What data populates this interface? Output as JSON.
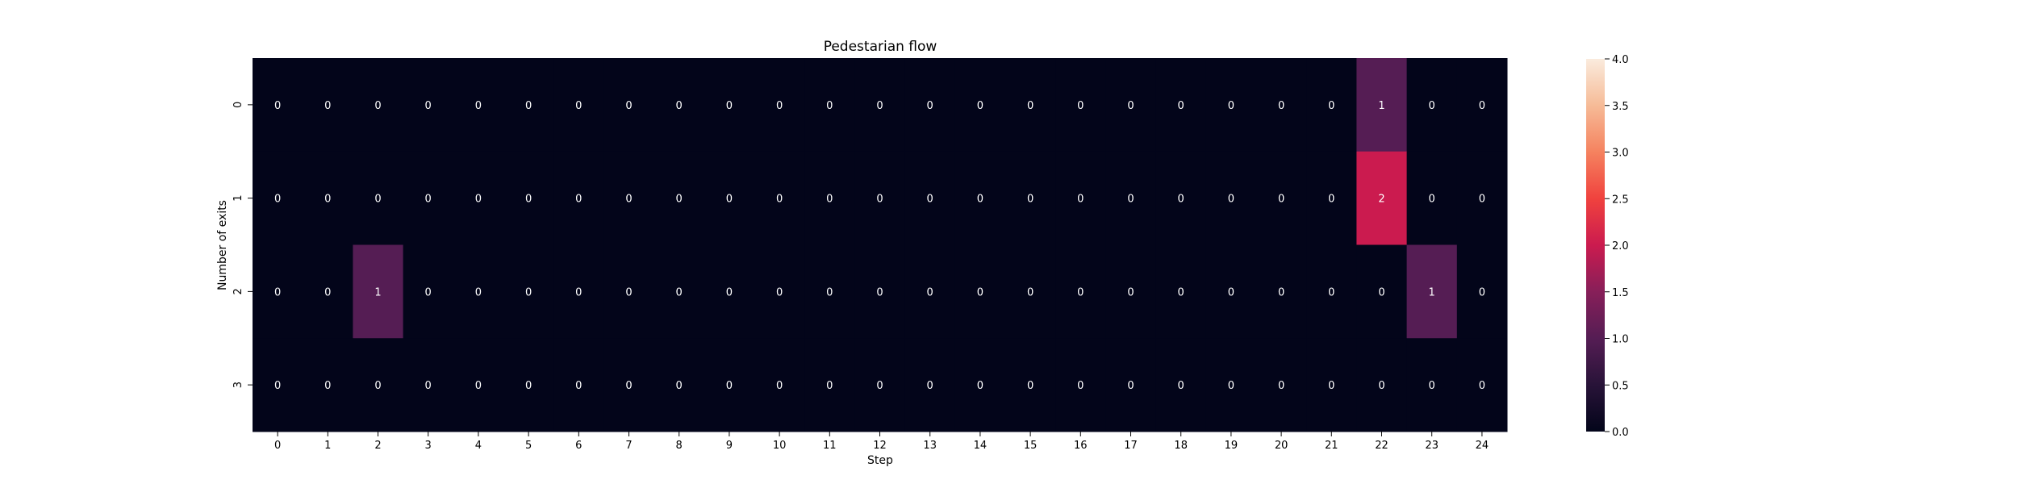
{
  "chart_data": {
    "type": "heatmap",
    "title": "Pedestarian flow",
    "xlabel": "Step",
    "ylabel": "Number of exits",
    "x_categories": [
      "0",
      "1",
      "2",
      "3",
      "4",
      "5",
      "6",
      "7",
      "8",
      "9",
      "10",
      "11",
      "12",
      "13",
      "14",
      "15",
      "16",
      "17",
      "18",
      "19",
      "20",
      "21",
      "22",
      "23",
      "24"
    ],
    "y_categories": [
      "0",
      "1",
      "2",
      "3"
    ],
    "values": [
      [
        0,
        0,
        0,
        0,
        0,
        0,
        0,
        0,
        0,
        0,
        0,
        0,
        0,
        0,
        0,
        0,
        0,
        0,
        0,
        0,
        0,
        0,
        1,
        0,
        0
      ],
      [
        0,
        0,
        0,
        0,
        0,
        0,
        0,
        0,
        0,
        0,
        0,
        0,
        0,
        0,
        0,
        0,
        0,
        0,
        0,
        0,
        0,
        0,
        2,
        0,
        0
      ],
      [
        0,
        0,
        1,
        0,
        0,
        0,
        0,
        0,
        0,
        0,
        0,
        0,
        0,
        0,
        0,
        0,
        0,
        0,
        0,
        0,
        0,
        0,
        0,
        1,
        0
      ],
      [
        0,
        0,
        0,
        0,
        0,
        0,
        0,
        0,
        0,
        0,
        0,
        0,
        0,
        0,
        0,
        0,
        0,
        0,
        0,
        0,
        0,
        0,
        0,
        0,
        0
      ]
    ],
    "colorbar": {
      "range": [
        0,
        4
      ],
      "ticks": [
        "0.0",
        "0.5",
        "1.0",
        "1.5",
        "2.0",
        "2.5",
        "3.0",
        "3.5",
        "4.0"
      ]
    },
    "colormap": "rocket",
    "annotate_cells": true
  }
}
